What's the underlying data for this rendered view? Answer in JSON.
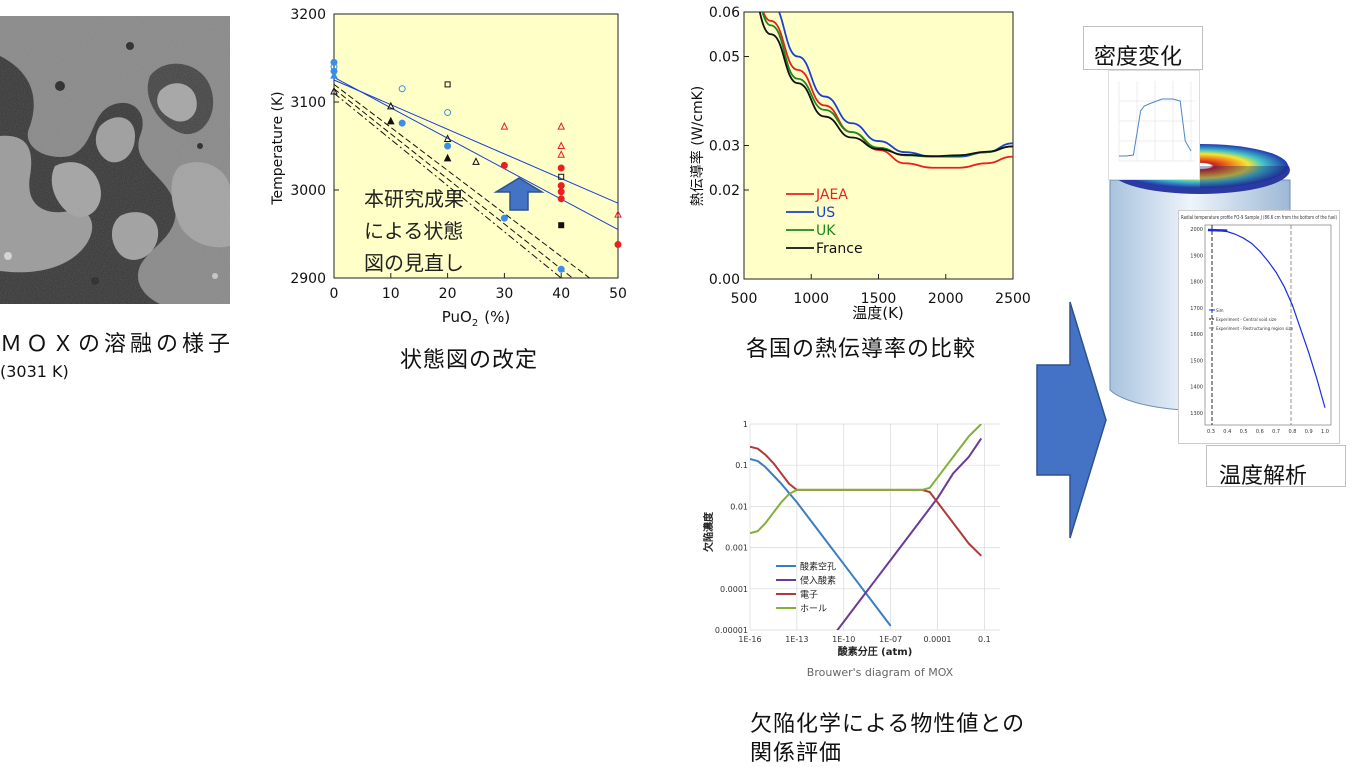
{
  "micrograph": {
    "caption": "ＭＯＸの溶融の様子",
    "caption_sub": "(3031 K)"
  },
  "phase_diagram": {
    "caption": "状態図の改定",
    "annotation_lines": [
      "本研究成果",
      "による状態",
      "図の見直し"
    ],
    "chart_data": {
      "type": "scatter",
      "xlabel": "PuO",
      "xlabel_sub": "2",
      "xlabel_unit": "(%)",
      "ylabel": "Temperature (K)",
      "xlim": [
        0,
        50
      ],
      "ylim": [
        2900,
        3200
      ],
      "x_ticks": [
        "0",
        "10",
        "20",
        "30",
        "40",
        "50"
      ],
      "y_ticks": [
        "3200",
        "3100",
        "3000",
        "2900"
      ],
      "lines": [
        {
          "style": "solid",
          "color": "#1a3fd1",
          "points": [
            [
              0,
              3128
            ],
            [
              50,
              2955
            ]
          ]
        },
        {
          "style": "solid",
          "color": "#1a3fd1",
          "points": [
            [
              0,
              3125
            ],
            [
              50,
              2985
            ]
          ]
        },
        {
          "style": "dash",
          "color": "#111111",
          "points": [
            [
              0,
              3120
            ],
            [
              45,
              2900
            ]
          ]
        },
        {
          "style": "dash",
          "color": "#111111",
          "points": [
            [
              0,
              3115
            ],
            [
              42,
              2900
            ]
          ]
        },
        {
          "style": "dashdot",
          "color": "#111111",
          "points": [
            [
              0,
              3110
            ],
            [
              40,
              2900
            ]
          ]
        }
      ],
      "points": [
        {
          "x": 0,
          "y": 3145,
          "m": "circle-fill",
          "c": "#3b8ee8"
        },
        {
          "x": 0,
          "y": 3140,
          "m": "circle-open",
          "c": "#3b8ee8"
        },
        {
          "x": 0,
          "y": 3135,
          "m": "circle-fill",
          "c": "#3b8ee8"
        },
        {
          "x": 0,
          "y": 3130,
          "m": "triangle-fill",
          "c": "#3b8ee8"
        },
        {
          "x": 0,
          "y": 3112,
          "m": "triangle-open",
          "c": "#111111"
        },
        {
          "x": 10,
          "y": 3095,
          "m": "triangle-open",
          "c": "#111111"
        },
        {
          "x": 10,
          "y": 3078,
          "m": "triangle-fill",
          "c": "#111111"
        },
        {
          "x": 12,
          "y": 3115,
          "m": "circle-open",
          "c": "#3b8ee8"
        },
        {
          "x": 12,
          "y": 3076,
          "m": "circle-fill",
          "c": "#3b8ee8"
        },
        {
          "x": 20,
          "y": 3120,
          "m": "square-open",
          "c": "#111111"
        },
        {
          "x": 20,
          "y": 3088,
          "m": "circle-open",
          "c": "#3b8ee8"
        },
        {
          "x": 20,
          "y": 3058,
          "m": "triangle-open",
          "c": "#111111"
        },
        {
          "x": 20,
          "y": 3050,
          "m": "circle-fill",
          "c": "#3b8ee8"
        },
        {
          "x": 20,
          "y": 3036,
          "m": "triangle-fill",
          "c": "#111111"
        },
        {
          "x": 25,
          "y": 3032,
          "m": "triangle-open",
          "c": "#111111"
        },
        {
          "x": 30,
          "y": 3072,
          "m": "triangle-open",
          "c": "#e82020"
        },
        {
          "x": 30,
          "y": 3028,
          "m": "circle-fill",
          "c": "#e82020"
        },
        {
          "x": 30,
          "y": 2968,
          "m": "circle-fill",
          "c": "#3b8ee8"
        },
        {
          "x": 40,
          "y": 3072,
          "m": "triangle-open",
          "c": "#e82020"
        },
        {
          "x": 40,
          "y": 3050,
          "m": "triangle-open",
          "c": "#e82020"
        },
        {
          "x": 40,
          "y": 3040,
          "m": "triangle-open",
          "c": "#e82020"
        },
        {
          "x": 40,
          "y": 3025,
          "m": "circle-fill",
          "c": "#e82020"
        },
        {
          "x": 40,
          "y": 3015,
          "m": "square-open",
          "c": "#111111"
        },
        {
          "x": 40,
          "y": 3005,
          "m": "circle-fill",
          "c": "#e82020"
        },
        {
          "x": 40,
          "y": 2998,
          "m": "circle-fill",
          "c": "#e82020"
        },
        {
          "x": 40,
          "y": 2990,
          "m": "circle-fill",
          "c": "#e82020"
        },
        {
          "x": 40,
          "y": 2960,
          "m": "square-fill",
          "c": "#111111"
        },
        {
          "x": 40,
          "y": 2910,
          "m": "circle-fill",
          "c": "#3b8ee8"
        },
        {
          "x": 50,
          "y": 2972,
          "m": "triangle-open",
          "c": "#e82020"
        },
        {
          "x": 50,
          "y": 2938,
          "m": "circle-fill",
          "c": "#e82020"
        }
      ]
    }
  },
  "conductivity": {
    "caption": "各国の熱伝導率の比較",
    "chart_data": {
      "type": "line",
      "xlabel": "温度(K)",
      "ylabel": "熱伝導率 (W/cmK)",
      "xlim": [
        500,
        2500
      ],
      "ylim": [
        0,
        0.06
      ],
      "x_ticks": [
        "500",
        "1000",
        "1500",
        "2000",
        "2500"
      ],
      "y_ticks": [
        "0.00",
        "0.02",
        "0.03",
        "0.05",
        "0.06"
      ],
      "y_tick_values": [
        0,
        0.02,
        0.03,
        0.05,
        0.06
      ],
      "series": [
        {
          "name": "JAEA",
          "color": "#e82020",
          "x": [
            500,
            700,
            900,
            1100,
            1300,
            1500,
            1700,
            1900,
            2100,
            2300,
            2500
          ],
          "y": [
            0.072,
            0.058,
            0.047,
            0.039,
            0.033,
            0.029,
            0.026,
            0.025,
            0.025,
            0.026,
            0.0275
          ]
        },
        {
          "name": "US",
          "color": "#1a3fd1",
          "x": [
            500,
            700,
            900,
            1100,
            1300,
            1500,
            1700,
            1900,
            2100,
            2300,
            2500
          ],
          "y": [
            0.078,
            0.062,
            0.05,
            0.041,
            0.035,
            0.031,
            0.0285,
            0.0275,
            0.0275,
            0.0285,
            0.0305
          ]
        },
        {
          "name": "UK",
          "color": "#1a8a1a",
          "x": [
            500,
            700,
            900,
            1100,
            1300,
            1500,
            1700,
            1900,
            2100,
            2300,
            2500
          ],
          "y": [
            0.074,
            0.057,
            0.045,
            0.038,
            0.033,
            0.0295,
            0.0278,
            0.0275,
            0.0277,
            0.0285,
            0.0298
          ]
        },
        {
          "name": "France",
          "color": "#111111",
          "x": [
            500,
            700,
            900,
            1100,
            1300,
            1500,
            1700,
            1900,
            2100,
            2300,
            2500
          ],
          "y": [
            0.07,
            0.055,
            0.044,
            0.0365,
            0.0318,
            0.0292,
            0.0279,
            0.0276,
            0.0278,
            0.0286,
            0.0298
          ]
        }
      ]
    }
  },
  "brouwer": {
    "caption_lines": [
      "欠陥化学による物性値との",
      "関係評価"
    ],
    "chart_data": {
      "type": "line",
      "title": "Brouwer's diagram of MOX",
      "xlabel": "酸素分圧 (atm)",
      "ylabel": "欠陥濃度",
      "log_x": true,
      "log_y": true,
      "xlim": [
        1e-16,
        1
      ],
      "ylim": [
        1e-05,
        1
      ],
      "x_ticks": [
        "1E-16",
        "1E-13",
        "1E-10",
        "1E-07",
        "0.0001",
        "0.1"
      ],
      "x_tick_values": [
        -16,
        -13,
        -10,
        -7,
        -4,
        -1
      ],
      "y_ticks": [
        "1",
        "0.1",
        "0.01",
        "0.001",
        "0.0001",
        "0.00001"
      ],
      "y_tick_values": [
        0,
        -1,
        -2,
        -3,
        -4,
        -5
      ],
      "series": [
        {
          "name": "酸素空孔",
          "color": "#3a7ec0",
          "logx": [
            -16,
            -15.5,
            -15,
            -14.5,
            -14,
            -13,
            -12,
            -11,
            -10,
            -9,
            -8,
            -7
          ],
          "logy": [
            -0.85,
            -0.9,
            -1.05,
            -1.25,
            -1.45,
            -1.9,
            -2.4,
            -2.9,
            -3.4,
            -3.9,
            -4.4,
            -4.9
          ]
        },
        {
          "name": "侵入酸素",
          "color": "#6a3a9a",
          "logx": [
            -11,
            -10,
            -9,
            -8,
            -7,
            -6,
            -5,
            -4,
            -3,
            -2,
            -1.2
          ],
          "logy": [
            -5.3,
            -4.8,
            -4.3,
            -3.8,
            -3.3,
            -2.8,
            -2.3,
            -1.8,
            -1.2,
            -0.8,
            -0.35
          ]
        },
        {
          "name": "電子",
          "color": "#b03a3a",
          "logx": [
            -16,
            -15.5,
            -15,
            -14.5,
            -14,
            -13.5,
            -13,
            -10,
            -7,
            -5,
            -4.5,
            -4,
            -3,
            -2,
            -1.2
          ],
          "logy": [
            -0.55,
            -0.6,
            -0.75,
            -0.95,
            -1.2,
            -1.45,
            -1.6,
            -1.6,
            -1.6,
            -1.6,
            -1.65,
            -1.9,
            -2.4,
            -2.9,
            -3.2
          ]
        },
        {
          "name": "ホール",
          "color": "#82b03a",
          "logx": [
            -16,
            -15.5,
            -15,
            -14.5,
            -14,
            -13.5,
            -13,
            -10,
            -7,
            -5,
            -4.5,
            -4,
            -3,
            -2,
            -1.2
          ],
          "logy": [
            -2.65,
            -2.6,
            -2.4,
            -2.15,
            -1.9,
            -1.7,
            -1.6,
            -1.6,
            -1.6,
            -1.6,
            -1.55,
            -1.3,
            -0.8,
            -0.3,
            0.0
          ]
        }
      ]
    }
  },
  "fuel_analysis": {
    "density_label": "密度変化",
    "temperature_label": "温度解析",
    "density_plot": {
      "chart_data": {
        "type": "line",
        "x": [
          0,
          0.1,
          0.2,
          0.3,
          0.35,
          0.45,
          0.6,
          0.75,
          0.85,
          0.92,
          1.0
        ],
        "y": [
          0.05,
          0.05,
          0.06,
          0.5,
          0.55,
          0.58,
          0.62,
          0.62,
          0.6,
          0.2,
          0.1
        ]
      }
    },
    "temp_plot": {
      "title": "Radial temperature profile FO-9 Sample J (86.6 cm from the bottom of the fuel)",
      "legend": [
        "Sim",
        "Experiment - Central void size",
        "Experiment - Restructuring region size"
      ],
      "y_ticks": [
        "2000",
        "1900",
        "1800",
        "1700",
        "1600",
        "1500",
        "1400",
        "1300"
      ],
      "x_ticks": [
        "0.3",
        "0.4",
        "0.5",
        "0.6",
        "0.7",
        "0.8",
        "0.9",
        "1.0"
      ],
      "chart_data": {
        "type": "line",
        "x": [
          0.3,
          0.35,
          0.4,
          0.45,
          0.5,
          0.55,
          0.6,
          0.65,
          0.7,
          0.75,
          0.8,
          0.85,
          0.9,
          0.95,
          1.0
        ],
        "y": [
          1995,
          1994,
          1990,
          1980,
          1965,
          1945,
          1915,
          1878,
          1835,
          1780,
          1710,
          1620,
          1530,
          1430,
          1320
        ]
      }
    }
  }
}
